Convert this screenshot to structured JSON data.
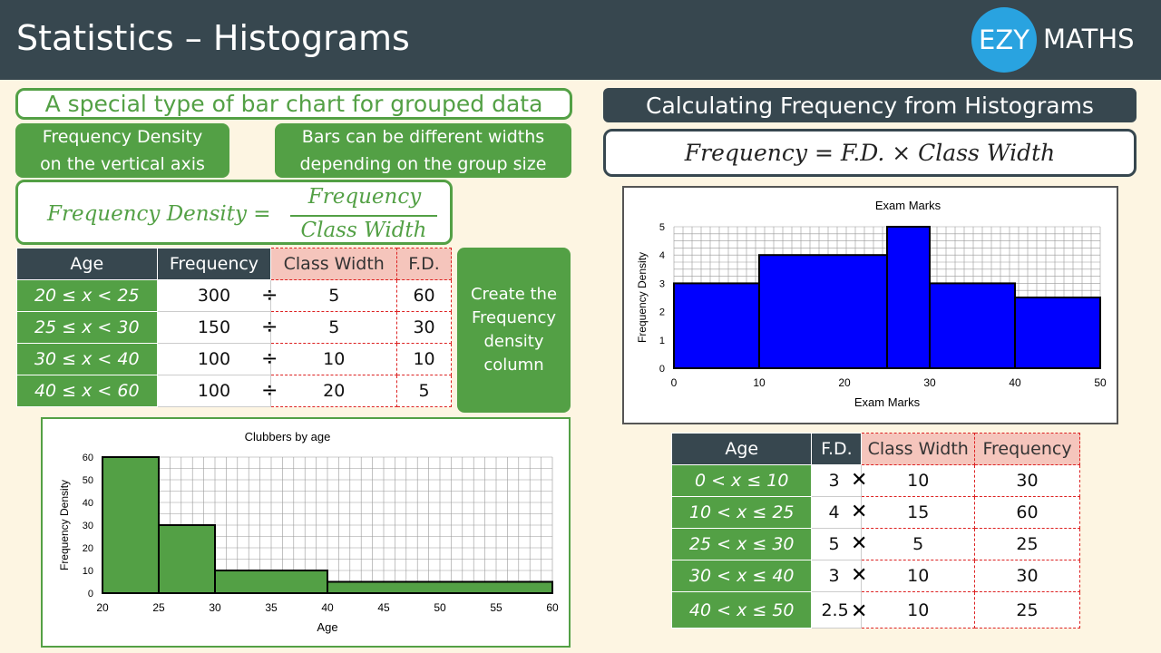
{
  "header": {
    "title": "Statistics – Histograms",
    "logo_left": "EZY",
    "logo_right": "MATHS"
  },
  "colors": {
    "header": "#37474f",
    "green": "#53a045",
    "pink": "#f5c5bc",
    "blue_bar": "#0000ff",
    "logo": "#29a3e0"
  },
  "left": {
    "tagline": "A special type of bar chart for grouped data",
    "note1": "Frequency Density on the vertical axis",
    "note2": "Bars can be different widths depending on the group size",
    "formula": {
      "lhs": "Frequency Density =",
      "numerator": "Frequency",
      "denominator": "Class Width"
    },
    "table": {
      "headers": [
        "Age",
        "Frequency",
        "Class Width",
        "F.D."
      ],
      "rows": [
        {
          "age": "20 ≤ x < 25",
          "frequency": "300",
          "op": "÷",
          "class_width": "5",
          "fd": "60"
        },
        {
          "age": "25 ≤ x < 30",
          "frequency": "150",
          "op": "÷",
          "class_width": "5",
          "fd": "30"
        },
        {
          "age": "30 ≤ x < 40",
          "frequency": "100",
          "op": "÷",
          "class_width": "10",
          "fd": "10"
        },
        {
          "age": "40 ≤ x < 60",
          "frequency": "100",
          "op": "÷",
          "class_width": "20",
          "fd": "5"
        }
      ]
    },
    "side_note": "Create the Frequency density column"
  },
  "right": {
    "title": "Calculating Frequency from Histograms",
    "formula": "Frequency = F.D. × Class Width",
    "table": {
      "headers": [
        "Age",
        "F.D.",
        "Class Width",
        "Frequency"
      ],
      "rows": [
        {
          "age": "0 < x ≤ 10",
          "fd": "3",
          "op": "✕",
          "class_width": "10",
          "frequency": "30"
        },
        {
          "age": "10 < x ≤ 25",
          "fd": "4",
          "op": "✕",
          "class_width": "15",
          "frequency": "60"
        },
        {
          "age": "25 < x ≤ 30",
          "fd": "5",
          "op": "✕",
          "class_width": "5",
          "frequency": "25"
        },
        {
          "age": "30 < x ≤ 40",
          "fd": "3",
          "op": "✕",
          "class_width": "10",
          "frequency": "30"
        },
        {
          "age": "40 < x ≤ 50",
          "fd": "2.5",
          "op": "✕",
          "class_width": "10",
          "frequency": "25"
        }
      ]
    }
  },
  "chart_data": [
    {
      "type": "bar",
      "title": "Clubbers by age",
      "xlabel": "Age",
      "ylabel": "Frequency Density",
      "bins": [
        [
          20,
          25
        ],
        [
          25,
          30
        ],
        [
          30,
          40
        ],
        [
          40,
          60
        ]
      ],
      "values": [
        60,
        30,
        10,
        5
      ],
      "xlim": [
        20,
        60
      ],
      "ylim": [
        0,
        60
      ],
      "xticks": [
        "20",
        "25",
        "30",
        "35",
        "40",
        "45",
        "50",
        "55",
        "60"
      ],
      "yticks": [
        "0",
        "10",
        "20",
        "30",
        "40",
        "50",
        "60"
      ],
      "grid": true,
      "color": "#53a045"
    },
    {
      "type": "bar",
      "title": "Exam Marks",
      "xlabel": "Exam Marks",
      "ylabel": "Frequency Density",
      "bins": [
        [
          0,
          10
        ],
        [
          10,
          25
        ],
        [
          25,
          30
        ],
        [
          30,
          40
        ],
        [
          40,
          50
        ]
      ],
      "values": [
        3,
        4,
        5,
        3,
        2.5
      ],
      "xlim": [
        0,
        50
      ],
      "ylim": [
        0,
        5
      ],
      "xticks": [
        "0",
        "10",
        "20",
        "30",
        "40",
        "50"
      ],
      "yticks": [
        "0",
        "1",
        "2",
        "3",
        "4",
        "5"
      ],
      "grid": true,
      "color": "#0000ff"
    }
  ]
}
